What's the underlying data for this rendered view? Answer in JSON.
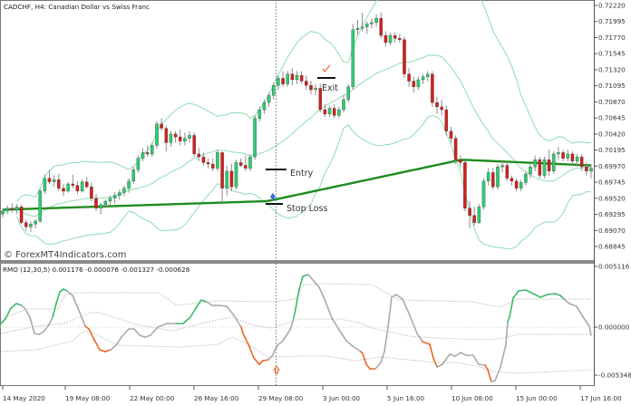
{
  "header": {
    "title": "CADCHF, H4:  Canadian Dollar vs Swiss Franc"
  },
  "indicator": {
    "title": "RMO (12,30,5) 0.001176 -0.000076 -0.001327 -0.000628"
  },
  "watermark": "© ForexMT4Indicators.com",
  "annotations": {
    "entry": "Entry",
    "stop_loss": "Stop Loss",
    "exit": "Exit"
  },
  "colors": {
    "bull": "#2ecc71",
    "bear": "#d0211c",
    "wick": "#8c8c8c",
    "band": "#8fdcb0",
    "ma": "#1e8c1e",
    "rmo_up": "#3dbb6b",
    "rmo_down": "#f26522",
    "rmo_neutral": "#aaaaaa",
    "signal": "#bdbdbd"
  },
  "chart_data": [
    {
      "type": "candlestick",
      "title": "CADCHF, H4:  Canadian Dollar vs Swiss Franc",
      "price_axis": {
        "ticks": [
          "0.72220",
          "0.71995",
          "0.71770",
          "0.71545",
          "0.71320",
          "0.71095",
          "0.70870",
          "0.70645",
          "0.70420",
          "0.70195",
          "0.69970",
          "0.69745",
          "0.69520",
          "0.69295",
          "0.69070",
          "0.68845"
        ],
        "ylim": [
          0.6877,
          0.7227
        ]
      },
      "time_axis": {
        "ticks": [
          "14 May 2020",
          "19 May 08:00",
          "22 May 00:00",
          "26 May 16:00",
          "29 May 08:00",
          "3 Jun 00:00",
          "5 Jun 16:00",
          "10 Jun 08:00",
          "15 Jun 00:00",
          "17 Jun 16:00"
        ]
      },
      "overlays": [
        "Bollinger Bands (upper, middle, lower)",
        "Moving Average (thick green)"
      ],
      "annotations": [
        {
          "text": "Entry",
          "price": 0.699
        },
        {
          "text": "Stop Loss",
          "price": 0.6946
        },
        {
          "text": "Exit",
          "price": 0.7116
        }
      ],
      "candles": [
        [
          0.693,
          0.6938,
          0.6925,
          0.6934
        ],
        [
          0.6934,
          0.6942,
          0.693,
          0.6938
        ],
        [
          0.6938,
          0.6945,
          0.6932,
          0.6936
        ],
        [
          0.6936,
          0.6944,
          0.693,
          0.694
        ],
        [
          0.694,
          0.6943,
          0.6916,
          0.6918
        ],
        [
          0.6918,
          0.6922,
          0.6906,
          0.6912
        ],
        [
          0.6912,
          0.692,
          0.6905,
          0.6916
        ],
        [
          0.6916,
          0.6923,
          0.691,
          0.692
        ],
        [
          0.692,
          0.6966,
          0.6918,
          0.6962
        ],
        [
          0.6962,
          0.6985,
          0.6958,
          0.698
        ],
        [
          0.698,
          0.6992,
          0.6972,
          0.6975
        ],
        [
          0.6975,
          0.6984,
          0.6968,
          0.6978
        ],
        [
          0.6978,
          0.6986,
          0.6962,
          0.6966
        ],
        [
          0.6966,
          0.6972,
          0.6955,
          0.6962
        ],
        [
          0.6962,
          0.6975,
          0.696,
          0.6972
        ],
        [
          0.6972,
          0.6985,
          0.6966,
          0.697
        ],
        [
          0.697,
          0.6976,
          0.6958,
          0.6962
        ],
        [
          0.6962,
          0.6978,
          0.696,
          0.6975
        ],
        [
          0.6975,
          0.6982,
          0.6966,
          0.6968
        ],
        [
          0.6968,
          0.6974,
          0.6948,
          0.6952
        ],
        [
          0.6952,
          0.6958,
          0.6934,
          0.6938
        ],
        [
          0.6938,
          0.6946,
          0.693,
          0.6943
        ],
        [
          0.6943,
          0.695,
          0.6938,
          0.6948
        ],
        [
          0.6948,
          0.6956,
          0.6942,
          0.6952
        ],
        [
          0.6952,
          0.696,
          0.6945,
          0.6956
        ],
        [
          0.6956,
          0.6964,
          0.695,
          0.696
        ],
        [
          0.696,
          0.697,
          0.6955,
          0.6966
        ],
        [
          0.6966,
          0.698,
          0.696,
          0.6976
        ],
        [
          0.6976,
          0.6996,
          0.6972,
          0.6992
        ],
        [
          0.6992,
          0.7012,
          0.6988,
          0.7008
        ],
        [
          0.7008,
          0.7022,
          0.7004,
          0.7016
        ],
        [
          0.7016,
          0.7026,
          0.701,
          0.7014
        ],
        [
          0.7014,
          0.703,
          0.701,
          0.7026
        ],
        [
          0.7026,
          0.706,
          0.7022,
          0.7056
        ],
        [
          0.7056,
          0.7064,
          0.7046,
          0.705
        ],
        [
          0.705,
          0.7054,
          0.7018,
          0.703
        ],
        [
          0.703,
          0.7046,
          0.7024,
          0.7042
        ],
        [
          0.7042,
          0.7046,
          0.703,
          0.7038
        ],
        [
          0.7038,
          0.7048,
          0.7026,
          0.7032
        ],
        [
          0.7032,
          0.7044,
          0.7026,
          0.7036
        ],
        [
          0.7036,
          0.7046,
          0.703,
          0.704
        ],
        [
          0.704,
          0.7044,
          0.701,
          0.7014
        ],
        [
          0.7014,
          0.7022,
          0.7004,
          0.701
        ],
        [
          0.701,
          0.7016,
          0.6998,
          0.7002
        ],
        [
          0.7002,
          0.7008,
          0.6994,
          0.7
        ],
        [
          0.7,
          0.7008,
          0.699,
          0.6994
        ],
        [
          0.6994,
          0.702,
          0.699,
          0.7016
        ],
        [
          0.7016,
          0.7018,
          0.6946,
          0.6966
        ],
        [
          0.6966,
          0.6998,
          0.6956,
          0.699
        ],
        [
          0.699,
          0.7,
          0.6962,
          0.6968
        ],
        [
          0.6968,
          0.7006,
          0.6964,
          0.7002
        ],
        [
          0.7002,
          0.7008,
          0.6996,
          0.6998
        ],
        [
          0.6998,
          0.7012,
          0.699,
          0.6994
        ],
        [
          0.6994,
          0.7014,
          0.699,
          0.701
        ],
        [
          0.701,
          0.7068,
          0.7006,
          0.7064
        ],
        [
          0.7064,
          0.708,
          0.706,
          0.7076
        ],
        [
          0.7076,
          0.709,
          0.707,
          0.7086
        ],
        [
          0.7086,
          0.71,
          0.708,
          0.7096
        ],
        [
          0.7096,
          0.7114,
          0.709,
          0.711
        ],
        [
          0.711,
          0.7124,
          0.7104,
          0.712
        ],
        [
          0.712,
          0.713,
          0.7108,
          0.7112
        ],
        [
          0.7112,
          0.713,
          0.7108,
          0.7126
        ],
        [
          0.7126,
          0.7134,
          0.711,
          0.7118
        ],
        [
          0.7118,
          0.713,
          0.7112,
          0.7124
        ],
        [
          0.7124,
          0.713,
          0.7112,
          0.7116
        ],
        [
          0.7116,
          0.7124,
          0.7104,
          0.711
        ],
        [
          0.711,
          0.7116,
          0.7098,
          0.7104
        ],
        [
          0.7104,
          0.7112,
          0.7096,
          0.7106
        ],
        [
          0.7106,
          0.7112,
          0.7072,
          0.7076
        ],
        [
          0.7076,
          0.7084,
          0.7066,
          0.707
        ],
        [
          0.707,
          0.7082,
          0.7066,
          0.7078
        ],
        [
          0.7078,
          0.7084,
          0.7064,
          0.7068
        ],
        [
          0.7068,
          0.708,
          0.7064,
          0.7076
        ],
        [
          0.7076,
          0.7096,
          0.7072,
          0.709
        ],
        [
          0.709,
          0.7112,
          0.7086,
          0.7108
        ],
        [
          0.7108,
          0.7196,
          0.7104,
          0.7188
        ],
        [
          0.7188,
          0.7202,
          0.718,
          0.719
        ],
        [
          0.719,
          0.7212,
          0.7186,
          0.7192
        ],
        [
          0.7192,
          0.72,
          0.7182,
          0.7196
        ],
        [
          0.7196,
          0.7204,
          0.719,
          0.7198
        ],
        [
          0.7198,
          0.721,
          0.7192,
          0.7204
        ],
        [
          0.7204,
          0.7212,
          0.7176,
          0.718
        ],
        [
          0.718,
          0.7186,
          0.7164,
          0.717
        ],
        [
          0.717,
          0.7184,
          0.7166,
          0.718
        ],
        [
          0.718,
          0.7184,
          0.717,
          0.7176
        ],
        [
          0.7176,
          0.7182,
          0.717,
          0.7174
        ],
        [
          0.7174,
          0.7178,
          0.712,
          0.7126
        ],
        [
          0.7126,
          0.7134,
          0.7108,
          0.7116
        ],
        [
          0.7116,
          0.7122,
          0.71,
          0.7108
        ],
        [
          0.7108,
          0.7122,
          0.7104,
          0.7118
        ],
        [
          0.7118,
          0.7126,
          0.7112,
          0.7122
        ],
        [
          0.7122,
          0.713,
          0.7116,
          0.7126
        ],
        [
          0.7126,
          0.713,
          0.708,
          0.7086
        ],
        [
          0.7086,
          0.7094,
          0.707,
          0.708
        ],
        [
          0.708,
          0.709,
          0.7068,
          0.7076
        ],
        [
          0.7076,
          0.7082,
          0.704,
          0.7046
        ],
        [
          0.7046,
          0.7052,
          0.703,
          0.7036
        ],
        [
          0.7036,
          0.704,
          0.7,
          0.7006
        ],
        [
          0.7006,
          0.7012,
          0.6996,
          0.7002
        ],
        [
          0.7002,
          0.7004,
          0.6934,
          0.6938
        ],
        [
          0.6938,
          0.6948,
          0.691,
          0.6928
        ],
        [
          0.6928,
          0.694,
          0.6914,
          0.6918
        ],
        [
          0.6918,
          0.6944,
          0.6916,
          0.694
        ],
        [
          0.694,
          0.698,
          0.6936,
          0.6976
        ],
        [
          0.6976,
          0.6994,
          0.697,
          0.6988
        ],
        [
          0.6988,
          0.6994,
          0.6964,
          0.6968
        ],
        [
          0.6968,
          0.7,
          0.6964,
          0.6996
        ],
        [
          0.6996,
          0.7004,
          0.6988,
          0.6998
        ],
        [
          0.6998,
          0.7004,
          0.6976,
          0.698
        ],
        [
          0.698,
          0.6984,
          0.697,
          0.6976
        ],
        [
          0.6976,
          0.698,
          0.6962,
          0.6966
        ],
        [
          0.6966,
          0.6978,
          0.6962,
          0.6974
        ],
        [
          0.6974,
          0.699,
          0.697,
          0.6986
        ],
        [
          0.6986,
          0.7,
          0.698,
          0.6996
        ],
        [
          0.6996,
          0.7012,
          0.699,
          0.7006
        ],
        [
          0.7006,
          0.701,
          0.698,
          0.6984
        ],
        [
          0.6984,
          0.701,
          0.698,
          0.7006
        ],
        [
          0.7006,
          0.702,
          0.6984,
          0.699
        ],
        [
          0.699,
          0.7018,
          0.6986,
          0.7014
        ],
        [
          0.7014,
          0.7024,
          0.7006,
          0.7016
        ],
        [
          0.7016,
          0.702,
          0.7004,
          0.7008
        ],
        [
          0.7008,
          0.702,
          0.7004,
          0.7014
        ],
        [
          0.7014,
          0.7018,
          0.7,
          0.7004
        ],
        [
          0.7004,
          0.7014,
          0.6996,
          0.701
        ],
        [
          0.701,
          0.7014,
          0.699,
          0.6996
        ],
        [
          0.6996,
          0.7002,
          0.6984,
          0.699
        ],
        [
          0.699,
          0.7,
          0.698,
          0.6994
        ]
      ]
    },
    {
      "type": "line",
      "title": "RMO (12,30,5) 0.001176 -0.000076 -0.001327 -0.000628",
      "y_axis": {
        "ticks": [
          "0.005116",
          "0.000000",
          "-0.005348"
        ],
        "ylim": [
          -0.0057,
          0.0054
        ]
      },
      "series": [
        {
          "name": "RMO",
          "color_coding": "green above upper signal, orange below lower signal, gray otherwise"
        },
        {
          "name": "Signal lines (dotted)",
          "count": 3
        }
      ],
      "current_values": [
        0.001176,
        -7.6e-05,
        -0.001327,
        -0.000628
      ]
    }
  ]
}
